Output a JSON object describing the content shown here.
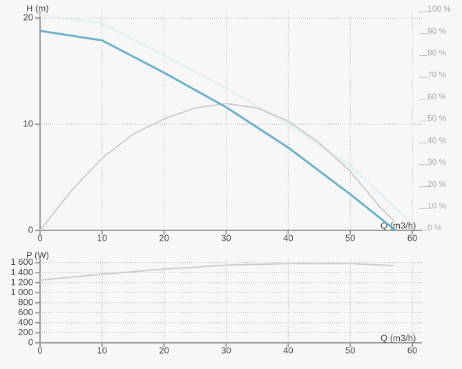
{
  "chart_data": [
    {
      "type": "line",
      "y_label": "H (m)",
      "x_label": "Q (m3/h)",
      "xlim": [
        0,
        60
      ],
      "xticks": [
        0,
        10,
        20,
        30,
        40,
        50,
        60
      ],
      "ylim": [
        0,
        20.6
      ],
      "yticks": [
        0,
        10,
        20
      ],
      "y2lim": [
        0,
        100
      ],
      "y2ticks": [
        {
          "value": 0,
          "label": "0 %"
        },
        {
          "value": 10,
          "label": "10 %"
        },
        {
          "value": 20,
          "label": "20 %"
        },
        {
          "value": 30,
          "label": "30 %"
        },
        {
          "value": 40,
          "label": "40 %"
        },
        {
          "value": 50,
          "label": "50 %"
        },
        {
          "value": 60,
          "label": "60 %"
        },
        {
          "value": 70,
          "label": "70 %"
        },
        {
          "value": 80,
          "label": "80 %"
        },
        {
          "value": 90,
          "label": "90 %"
        },
        {
          "value": 100,
          "label": "100 %"
        }
      ],
      "grid": true,
      "series": [
        {
          "color": "#d6ebf3",
          "style": "dotted",
          "width": 4,
          "x": [
            0,
            10,
            20,
            30,
            40,
            50,
            59.5
          ],
          "values": [
            20.3,
            19.5,
            16.5,
            13.4,
            10,
            6.1,
            0.9
          ]
        },
        {
          "color": "#cccccc",
          "style": "solid",
          "width": 2,
          "axis": "y2",
          "x": [
            0,
            5,
            10,
            15,
            20,
            25,
            30,
            35,
            40,
            45,
            50,
            55,
            57.2
          ],
          "values": [
            0,
            18,
            33,
            44,
            51,
            56,
            58,
            56,
            50,
            40,
            27,
            10,
            4
          ]
        },
        {
          "color": "#6aafc9",
          "style": "solid",
          "width": 3,
          "x": [
            0,
            10,
            20,
            30,
            40,
            50,
            57.3
          ],
          "values": [
            18.8,
            17.9,
            14.85,
            11.6,
            7.8,
            3.4,
            0
          ]
        }
      ]
    },
    {
      "type": "line",
      "y_label": "P (W)",
      "x_label": "Q (m3/h)",
      "xlim": [
        0,
        60
      ],
      "xticks": [
        0,
        10,
        20,
        30,
        40,
        50,
        60
      ],
      "ylim": [
        0,
        1680
      ],
      "yticks": [
        0,
        200,
        400,
        600,
        800,
        {
          "value": 1000,
          "label": "1 000"
        },
        {
          "value": 1200,
          "label": "1 200"
        },
        {
          "value": 1400,
          "label": "1 400"
        },
        {
          "value": 1600,
          "label": "1 600"
        }
      ],
      "grid": true,
      "series": [
        {
          "color": "#cccccc",
          "style": "solid",
          "width": 2,
          "x": [
            0,
            10,
            20,
            30,
            40,
            50,
            57
          ],
          "values": [
            1250,
            1370,
            1470,
            1550,
            1580,
            1580,
            1540
          ]
        }
      ]
    }
  ]
}
